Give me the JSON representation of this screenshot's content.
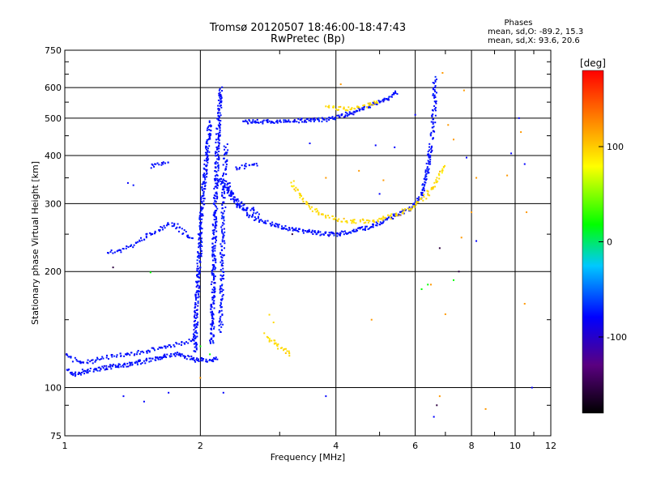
{
  "chart_data": {
    "type": "scatter",
    "title": "Tromsø 20120507 18:46:00-18:47:43",
    "subtitle": "RwPretec (Bp)",
    "xlabel": "Frequency [MHz]",
    "ylabel": "Stationary phase Virtual Height [km]",
    "x_scale": "log",
    "y_scale": "log",
    "xlim": [
      1,
      12
    ],
    "ylim": [
      75,
      750
    ],
    "x_ticks": [
      "1",
      "2",
      "4",
      "6",
      "8",
      "10",
      "12"
    ],
    "y_ticks": [
      "75",
      "100",
      "200",
      "300",
      "400",
      "500",
      "600",
      "750"
    ],
    "grid": true,
    "phase_stats": {
      "heading": "Phases",
      "o_line": "mean, sd,O: -89.2, 15.3",
      "x_line": "mean, sd,X: 93.6, 20.6"
    },
    "colorbar": {
      "label": "[deg]",
      "ticks": [
        "100",
        "0",
        "-100"
      ],
      "tick_values": [
        100,
        0,
        -100
      ],
      "range": [
        -180,
        180
      ]
    },
    "series": [
      {
        "phase": -95,
        "density": 3,
        "points": [
          [
            1.0,
            112
          ],
          [
            1.03,
            109
          ],
          [
            1.06,
            108
          ],
          [
            1.1,
            110
          ],
          [
            1.15,
            111
          ],
          [
            1.2,
            112
          ],
          [
            1.25,
            113
          ],
          [
            1.3,
            114
          ],
          [
            1.35,
            114
          ],
          [
            1.4,
            115
          ],
          [
            1.45,
            116
          ],
          [
            1.5,
            117
          ],
          [
            1.55,
            118
          ],
          [
            1.6,
            119
          ],
          [
            1.65,
            120
          ],
          [
            1.7,
            121
          ],
          [
            1.75,
            122
          ],
          [
            1.8,
            122
          ],
          [
            1.85,
            121
          ],
          [
            1.9,
            119
          ],
          [
            1.95,
            118
          ],
          [
            2.0,
            118
          ],
          [
            2.05,
            118
          ],
          [
            2.1,
            118
          ],
          [
            2.15,
            118
          ],
          [
            2.2,
            119
          ]
        ]
      },
      {
        "phase": -95,
        "density": 2,
        "points": [
          [
            1.0,
            122
          ],
          [
            1.05,
            118
          ],
          [
            1.1,
            116
          ],
          [
            1.15,
            117
          ],
          [
            1.2,
            119
          ],
          [
            1.3,
            121
          ],
          [
            1.4,
            122
          ],
          [
            1.5,
            124
          ],
          [
            1.6,
            126
          ],
          [
            1.7,
            128
          ],
          [
            1.8,
            130
          ],
          [
            1.9,
            133
          ],
          [
            1.95,
            135
          ]
        ]
      },
      {
        "phase": -95,
        "density": 3,
        "points": [
          [
            1.95,
            124
          ],
          [
            1.95,
            140
          ],
          [
            1.96,
            160
          ],
          [
            1.97,
            180
          ],
          [
            1.98,
            200
          ],
          [
            1.99,
            220
          ],
          [
            2.0,
            240
          ],
          [
            2.0,
            260
          ],
          [
            2.01,
            280
          ],
          [
            2.02,
            300
          ],
          [
            2.03,
            320
          ],
          [
            2.04,
            340
          ],
          [
            2.05,
            360
          ],
          [
            2.06,
            380
          ],
          [
            2.07,
            400
          ],
          [
            2.08,
            430
          ],
          [
            2.09,
            460
          ],
          [
            2.1,
            490
          ]
        ]
      },
      {
        "phase": -95,
        "density": 3,
        "points": [
          [
            2.12,
            130
          ],
          [
            2.13,
            160
          ],
          [
            2.14,
            200
          ],
          [
            2.15,
            250
          ],
          [
            2.16,
            300
          ],
          [
            2.17,
            350
          ],
          [
            2.18,
            400
          ],
          [
            2.19,
            450
          ],
          [
            2.2,
            500
          ],
          [
            2.21,
            550
          ],
          [
            2.22,
            600
          ]
        ]
      },
      {
        "phase": -95,
        "density": 2,
        "points": [
          [
            2.22,
            140
          ],
          [
            2.23,
            180
          ],
          [
            2.24,
            230
          ],
          [
            2.25,
            280
          ],
          [
            2.26,
            330
          ],
          [
            2.27,
            380
          ],
          [
            2.28,
            430
          ]
        ]
      },
      {
        "phase": -95,
        "density": 2,
        "points": [
          [
            1.25,
            225
          ],
          [
            1.3,
            226
          ],
          [
            1.35,
            228
          ],
          [
            1.4,
            232
          ],
          [
            1.45,
            238
          ],
          [
            1.5,
            245
          ],
          [
            1.55,
            250
          ],
          [
            1.6,
            255
          ],
          [
            1.65,
            260
          ],
          [
            1.7,
            265
          ],
          [
            1.75,
            265
          ],
          [
            1.8,
            258
          ],
          [
            1.85,
            250
          ],
          [
            1.9,
            245
          ],
          [
            1.95,
            243
          ]
        ]
      },
      {
        "phase": -95,
        "density": 2,
        "points": [
          [
            1.55,
            375
          ],
          [
            1.6,
            380
          ],
          [
            1.65,
            383
          ],
          [
            1.7,
            378
          ]
        ]
      },
      {
        "phase": -95,
        "density": 1,
        "points": [
          [
            1.38,
            338
          ],
          [
            1.42,
            336
          ]
        ]
      },
      {
        "phase": -95,
        "density": 2,
        "points": [
          [
            2.3,
            340
          ],
          [
            2.35,
            320
          ],
          [
            2.4,
            310
          ],
          [
            2.5,
            295
          ],
          [
            2.6,
            290
          ],
          [
            2.7,
            280
          ]
        ]
      },
      {
        "phase": -95,
        "density": 2,
        "points": [
          [
            2.4,
            370
          ],
          [
            2.5,
            375
          ],
          [
            2.6,
            378
          ],
          [
            2.7,
            380
          ]
        ]
      },
      {
        "phase": -95,
        "density": 3,
        "points": [
          [
            2.2,
            350
          ],
          [
            2.4,
            300
          ],
          [
            2.6,
            278
          ],
          [
            2.8,
            268
          ],
          [
            3.0,
            262
          ],
          [
            3.2,
            258
          ],
          [
            3.4,
            255
          ],
          [
            3.6,
            252
          ],
          [
            3.8,
            250
          ],
          [
            4.0,
            250
          ],
          [
            4.2,
            252
          ],
          [
            4.5,
            257
          ],
          [
            4.8,
            262
          ],
          [
            5.0,
            268
          ],
          [
            5.3,
            276
          ],
          [
            5.5,
            282
          ],
          [
            5.8,
            290
          ],
          [
            6.0,
            300
          ],
          [
            6.2,
            315
          ],
          [
            6.3,
            340
          ],
          [
            6.4,
            370
          ],
          [
            6.45,
            400
          ],
          [
            6.5,
            430
          ]
        ]
      },
      {
        "phase": -95,
        "density": 3,
        "points": [
          [
            2.5,
            490
          ],
          [
            2.7,
            489
          ],
          [
            2.9,
            490
          ],
          [
            3.1,
            492
          ],
          [
            3.3,
            492
          ],
          [
            3.5,
            495
          ],
          [
            3.7,
            495
          ],
          [
            3.9,
            498
          ],
          [
            4.1,
            505
          ],
          [
            4.3,
            515
          ],
          [
            4.5,
            525
          ],
          [
            4.7,
            535
          ],
          [
            4.9,
            545
          ],
          [
            5.1,
            555
          ],
          [
            5.3,
            570
          ],
          [
            5.5,
            585
          ]
        ]
      },
      {
        "phase": -95,
        "density": 2,
        "points": [
          [
            6.55,
            440
          ],
          [
            6.58,
            480
          ],
          [
            6.6,
            520
          ],
          [
            6.62,
            560
          ],
          [
            6.63,
            600
          ],
          [
            6.62,
            640
          ]
        ]
      },
      {
        "phase": 95,
        "density": 2,
        "points": [
          [
            3.2,
            340
          ],
          [
            3.3,
            320
          ],
          [
            3.4,
            305
          ],
          [
            3.5,
            293
          ],
          [
            3.7,
            283
          ],
          [
            3.9,
            276
          ],
          [
            4.1,
            272
          ],
          [
            4.3,
            270
          ],
          [
            4.6,
            270
          ],
          [
            4.9,
            272
          ],
          [
            5.2,
            276
          ],
          [
            5.5,
            282
          ],
          [
            5.8,
            290
          ],
          [
            6.1,
            302
          ],
          [
            6.4,
            318
          ],
          [
            6.6,
            335
          ],
          [
            6.8,
            355
          ],
          [
            7.0,
            380
          ]
        ]
      },
      {
        "phase": 95,
        "density": 2,
        "points": [
          [
            3.8,
            535
          ],
          [
            4.0,
            530
          ],
          [
            4.2,
            527
          ],
          [
            4.4,
            528
          ],
          [
            4.6,
            535
          ],
          [
            4.8,
            545
          ],
          [
            5.0,
            550
          ]
        ]
      },
      {
        "phase": 95,
        "density": 2,
        "points": [
          [
            2.8,
            137
          ],
          [
            2.9,
            131
          ],
          [
            3.0,
            127
          ],
          [
            3.1,
            124
          ],
          [
            3.2,
            121
          ]
        ]
      },
      {
        "phase": 95,
        "density": 1,
        "points": [
          [
            2.85,
            155
          ],
          [
            2.9,
            148
          ]
        ]
      },
      {
        "phase": 120,
        "density": 1,
        "points": [
          [
            7.1,
            480
          ],
          [
            7.3,
            440
          ],
          [
            7.0,
            155
          ],
          [
            6.8,
            95
          ],
          [
            8.6,
            88
          ],
          [
            9.6,
            355
          ],
          [
            10.3,
            460
          ],
          [
            10.6,
            285
          ],
          [
            10.5,
            165
          ],
          [
            7.7,
            590
          ],
          [
            8.2,
            350
          ],
          [
            4.5,
            365
          ],
          [
            4.8,
            150
          ],
          [
            3.8,
            350
          ],
          [
            4.1,
            612
          ],
          [
            5.1,
            345
          ],
          [
            2.0,
            106
          ],
          [
            7.6,
            245
          ],
          [
            8.0,
            285
          ],
          [
            6.5,
            185
          ],
          [
            6.9,
            655
          ]
        ]
      },
      {
        "phase": -100,
        "density": 1,
        "points": [
          [
            1.35,
            95
          ],
          [
            1.5,
            92
          ],
          [
            1.7,
            97
          ],
          [
            2.25,
            97
          ],
          [
            3.8,
            95
          ],
          [
            4.9,
            425
          ],
          [
            5.0,
            318
          ],
          [
            5.4,
            420
          ],
          [
            6.6,
            84
          ],
          [
            7.8,
            395
          ],
          [
            8.2,
            240
          ],
          [
            9.8,
            405
          ],
          [
            10.5,
            380
          ],
          [
            10.9,
            100
          ],
          [
            6.0,
            510
          ],
          [
            3.5,
            430
          ],
          [
            10.2,
            500
          ]
        ]
      },
      {
        "phase": 20,
        "density": 1,
        "points": [
          [
            1.55,
            199
          ],
          [
            2.1,
            122
          ],
          [
            6.4,
            185
          ],
          [
            7.3,
            190
          ],
          [
            6.2,
            180
          ],
          [
            2.0,
            128
          ]
        ]
      },
      {
        "phase": -160,
        "density": 1,
        "points": [
          [
            1.28,
            205
          ],
          [
            3.2,
            250
          ],
          [
            6.8,
            230
          ],
          [
            7.5,
            200
          ],
          [
            6.7,
            90
          ]
        ]
      }
    ]
  }
}
